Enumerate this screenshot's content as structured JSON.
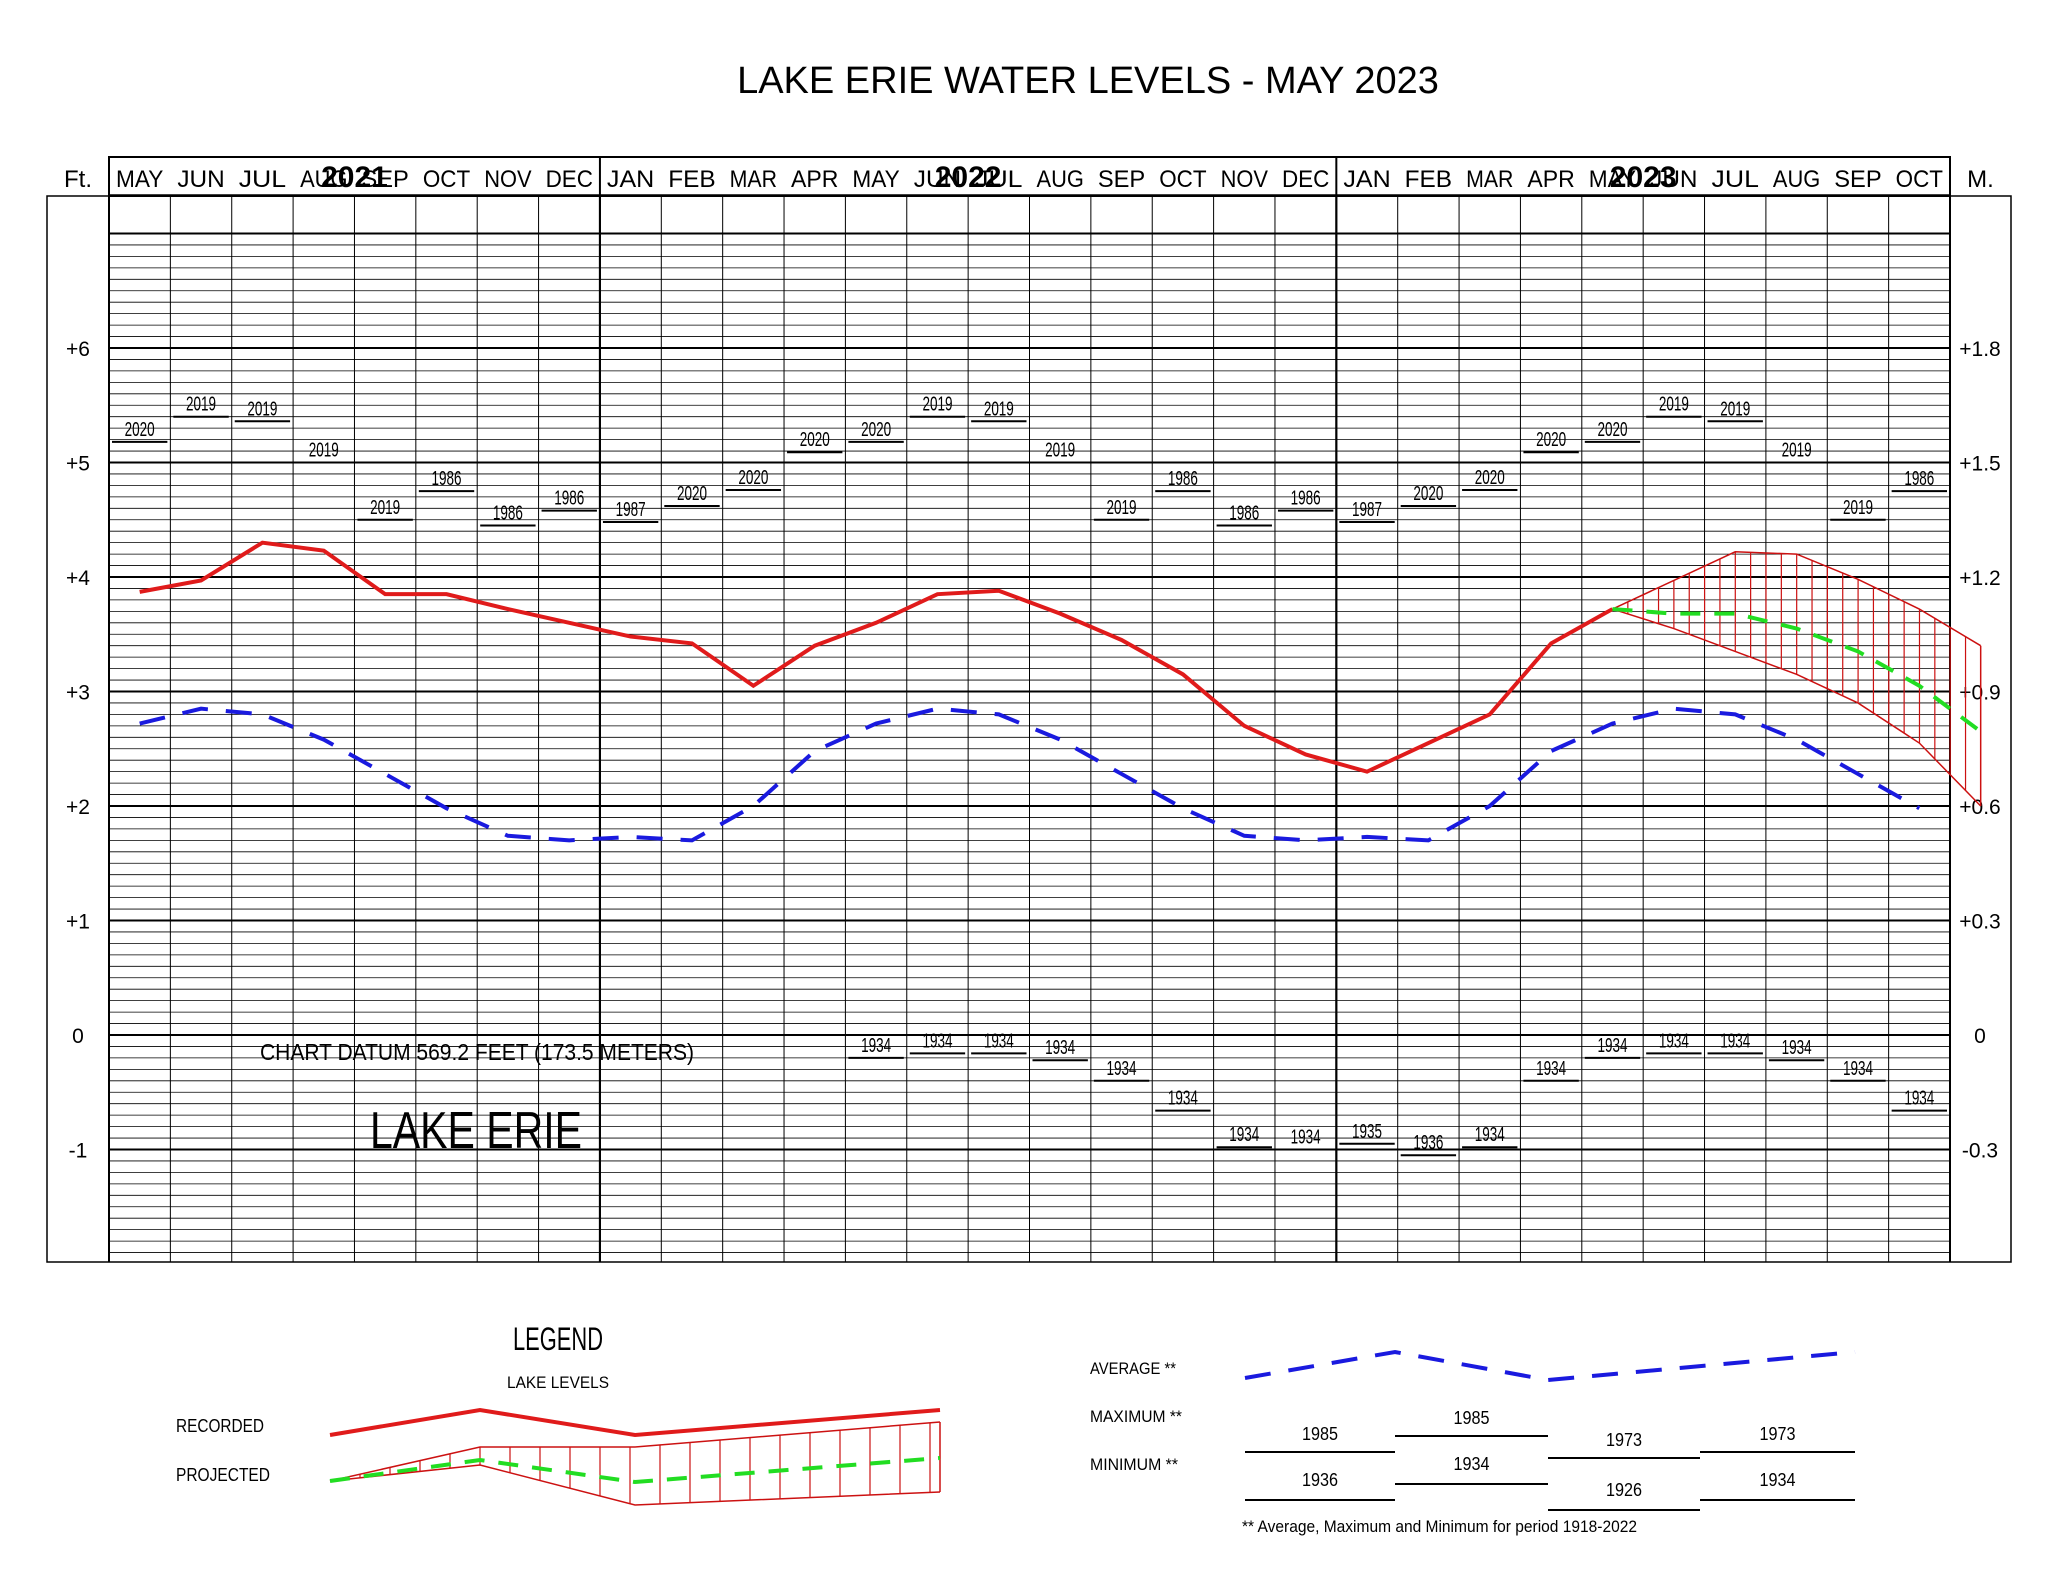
{
  "chart_data": {
    "type": "line",
    "title": "LAKE ERIE WATER LEVELS - MAY 2023",
    "years": [
      {
        "label": "2021",
        "first": 0,
        "last": 7
      },
      {
        "label": "2022",
        "first": 8,
        "last": 19
      },
      {
        "label": "2023",
        "first": 20,
        "last": 29
      }
    ],
    "categories": [
      "MAY",
      "JUN",
      "JUL",
      "AUG",
      "SEP",
      "OCT",
      "NOV",
      "DEC",
      "JAN",
      "FEB",
      "MAR",
      "APR",
      "MAY",
      "JUN",
      "JUL",
      "AUG",
      "SEP",
      "OCT",
      "NOV",
      "DEC",
      "JAN",
      "FEB",
      "MAR",
      "APR",
      "MAY",
      "JUN",
      "JUL",
      "AUG",
      "SEP",
      "OCT"
    ],
    "left_axis": {
      "unit": "Ft.",
      "ticks": [
        {
          "v": 6,
          "label": "+6"
        },
        {
          "v": 5,
          "label": "+5"
        },
        {
          "v": 4,
          "label": "+4"
        },
        {
          "v": 3,
          "label": "+3"
        },
        {
          "v": 2,
          "label": "+2"
        },
        {
          "v": 1,
          "label": "+1"
        },
        {
          "v": 0,
          "label": "0"
        },
        {
          "v": -1,
          "label": "-1"
        }
      ],
      "ylim": [
        -2,
        7
      ]
    },
    "right_axis": {
      "unit": "M.",
      "ticks": [
        {
          "v": 6,
          "label": "+1.8"
        },
        {
          "v": 5,
          "label": "+1.5"
        },
        {
          "v": 4,
          "label": "+1.2"
        },
        {
          "v": 3,
          "label": "+0.9"
        },
        {
          "v": 2,
          "label": "+0.6"
        },
        {
          "v": 1,
          "label": "+0.3"
        },
        {
          "v": 0,
          "label": "0"
        },
        {
          "v": -1,
          "label": "-0.3"
        }
      ]
    },
    "recorded": [
      3.87,
      3.97,
      4.3,
      4.23,
      3.85,
      3.85,
      3.72,
      3.6,
      3.48,
      3.42,
      3.05,
      3.4,
      3.6,
      3.85,
      3.88,
      3.68,
      3.45,
      3.15,
      2.7,
      2.45,
      2.3,
      2.55,
      2.8,
      3.42,
      3.72
    ],
    "projected": {
      "start_index": 24,
      "values": [
        3.72,
        3.68,
        3.68,
        3.55,
        3.35,
        3.05,
        2.65
      ]
    },
    "projected_max": [
      3.72,
      3.97,
      4.22,
      4.2,
      3.98,
      3.72,
      3.4
    ],
    "projected_min": [
      3.72,
      3.55,
      3.35,
      3.15,
      2.9,
      2.55,
      2.0
    ],
    "average": [
      2.72,
      2.85,
      2.8,
      2.58,
      2.28,
      1.98,
      1.74,
      1.7,
      1.73,
      1.7,
      2.0,
      2.48,
      2.72,
      2.85,
      2.8,
      2.58,
      2.28,
      1.98,
      1.74,
      1.7,
      1.73,
      1.7,
      2.0,
      2.48,
      2.72,
      2.85,
      2.8,
      2.58,
      2.28,
      1.98
    ],
    "maximum": [
      {
        "value": 5.18,
        "year": "2020"
      },
      {
        "value": 5.4,
        "year": "2019"
      },
      {
        "value": 5.36,
        "year": "2019"
      },
      {
        "value": 5.0,
        "year": "2019"
      },
      {
        "value": 4.5,
        "year": "2019"
      },
      {
        "value": 4.75,
        "year": "1986"
      },
      {
        "value": 4.45,
        "year": "1986"
      },
      {
        "value": 4.58,
        "year": "1986"
      },
      {
        "value": 4.48,
        "year": "1987"
      },
      {
        "value": 4.62,
        "year": "2020"
      },
      {
        "value": 4.76,
        "year": "2020"
      },
      {
        "value": 5.09,
        "year": "2020"
      },
      {
        "value": 5.18,
        "year": "2020"
      },
      {
        "value": 5.4,
        "year": "2019"
      },
      {
        "value": 5.36,
        "year": "2019"
      },
      {
        "value": 5.0,
        "year": "2019"
      },
      {
        "value": 4.5,
        "year": "2019"
      },
      {
        "value": 4.75,
        "year": "1986"
      },
      {
        "value": 4.45,
        "year": "1986"
      },
      {
        "value": 4.58,
        "year": "1986"
      },
      {
        "value": 4.48,
        "year": "1987"
      },
      {
        "value": 4.62,
        "year": "2020"
      },
      {
        "value": 4.76,
        "year": "2020"
      },
      {
        "value": 5.09,
        "year": "2020"
      },
      {
        "value": 5.18,
        "year": "2020"
      },
      {
        "value": 5.4,
        "year": "2019"
      },
      {
        "value": 5.36,
        "year": "2019"
      },
      {
        "value": 5.0,
        "year": "2019"
      },
      {
        "value": 4.5,
        "year": "2019"
      },
      {
        "value": 4.75,
        "year": "1986"
      }
    ],
    "minimum": [
      {
        "value": null,
        "year": ""
      },
      {
        "value": null,
        "year": ""
      },
      {
        "value": null,
        "year": ""
      },
      {
        "value": null,
        "year": ""
      },
      {
        "value": null,
        "year": ""
      },
      {
        "value": null,
        "year": ""
      },
      {
        "value": null,
        "year": ""
      },
      {
        "value": null,
        "year": ""
      },
      {
        "value": null,
        "year": ""
      },
      {
        "value": null,
        "year": ""
      },
      {
        "value": null,
        "year": ""
      },
      {
        "value": null,
        "year": ""
      },
      {
        "value": -0.2,
        "year": "1934"
      },
      {
        "value": -0.16,
        "year": "1934"
      },
      {
        "value": -0.16,
        "year": "1934"
      },
      {
        "value": -0.22,
        "year": "1934"
      },
      {
        "value": -0.4,
        "year": "1934"
      },
      {
        "value": -0.66,
        "year": "1934"
      },
      {
        "value": -0.98,
        "year": "1934"
      },
      {
        "value": -1.0,
        "year": "1934"
      },
      {
        "value": -0.95,
        "year": "1935"
      },
      {
        "value": -1.05,
        "year": "1936"
      },
      {
        "value": -0.98,
        "year": "1934"
      },
      {
        "value": -0.4,
        "year": "1934"
      },
      {
        "value": -0.2,
        "year": "1934"
      },
      {
        "value": -0.16,
        "year": "1934"
      },
      {
        "value": -0.16,
        "year": "1934"
      },
      {
        "value": -0.22,
        "year": "1934"
      },
      {
        "value": -0.4,
        "year": "1934"
      },
      {
        "value": -0.66,
        "year": "1934"
      }
    ],
    "annotations": {
      "datum": "CHART DATUM  569.2 FEET (173.5 METERS)",
      "lake": "LAKE ERIE"
    },
    "legend": {
      "title": "LEGEND",
      "subtitle": "LAKE LEVELS",
      "recorded": "RECORDED",
      "projected": "PROJECTED",
      "average": "AVERAGE **",
      "maximum": "MAXIMUM **",
      "minimum": "MINIMUM **",
      "max_years": [
        "1985",
        "1985",
        "1973",
        "1973"
      ],
      "min_years": [
        "1936",
        "1934",
        "1926",
        "1934"
      ],
      "footnote": "** Average, Maximum and Minimum for period 1918-2022"
    },
    "colors": {
      "recorded": "#e01b1b",
      "projected": "#22dd22",
      "average": "#1a1adf",
      "band": "#cc1111"
    },
    "grid": true
  }
}
